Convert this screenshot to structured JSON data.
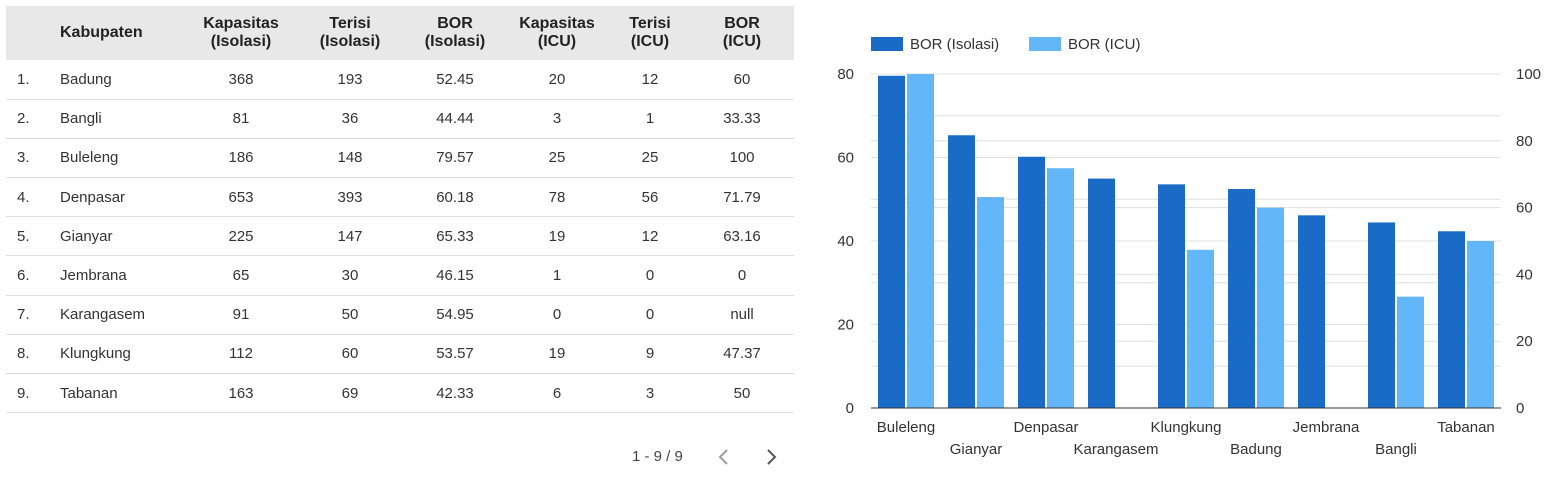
{
  "table": {
    "headers": {
      "no": "",
      "kabupaten": "Kabupaten",
      "kap_iso": [
        "Kapasitas",
        "(Isolasi)"
      ],
      "ter_iso": [
        "Terisi",
        "(Isolasi)"
      ],
      "bor_iso": [
        "BOR",
        "(Isolasi)"
      ],
      "kap_icu": [
        "Kapasitas",
        "(ICU)"
      ],
      "ter_icu": [
        "Terisi",
        "(ICU)"
      ],
      "bor_icu": [
        "BOR",
        "(ICU)"
      ]
    },
    "rows": [
      {
        "no": "1.",
        "kabupaten": "Badung",
        "kap_iso": "368",
        "ter_iso": "193",
        "bor_iso": "52.45",
        "kap_icu": "20",
        "ter_icu": "12",
        "bor_icu": "60"
      },
      {
        "no": "2.",
        "kabupaten": "Bangli",
        "kap_iso": "81",
        "ter_iso": "36",
        "bor_iso": "44.44",
        "kap_icu": "3",
        "ter_icu": "1",
        "bor_icu": "33.33"
      },
      {
        "no": "3.",
        "kabupaten": "Buleleng",
        "kap_iso": "186",
        "ter_iso": "148",
        "bor_iso": "79.57",
        "kap_icu": "25",
        "ter_icu": "25",
        "bor_icu": "100"
      },
      {
        "no": "4.",
        "kabupaten": "Denpasar",
        "kap_iso": "653",
        "ter_iso": "393",
        "bor_iso": "60.18",
        "kap_icu": "78",
        "ter_icu": "56",
        "bor_icu": "71.79"
      },
      {
        "no": "5.",
        "kabupaten": "Gianyar",
        "kap_iso": "225",
        "ter_iso": "147",
        "bor_iso": "65.33",
        "kap_icu": "19",
        "ter_icu": "12",
        "bor_icu": "63.16"
      },
      {
        "no": "6.",
        "kabupaten": "Jembrana",
        "kap_iso": "65",
        "ter_iso": "30",
        "bor_iso": "46.15",
        "kap_icu": "1",
        "ter_icu": "0",
        "bor_icu": "0"
      },
      {
        "no": "7.",
        "kabupaten": "Karangasem",
        "kap_iso": "91",
        "ter_iso": "50",
        "bor_iso": "54.95",
        "kap_icu": "0",
        "ter_icu": "0",
        "bor_icu": "null"
      },
      {
        "no": "8.",
        "kabupaten": "Klungkung",
        "kap_iso": "112",
        "ter_iso": "60",
        "bor_iso": "53.57",
        "kap_icu": "19",
        "ter_icu": "9",
        "bor_icu": "47.37"
      },
      {
        "no": "9.",
        "kabupaten": "Tabanan",
        "kap_iso": "163",
        "ter_iso": "69",
        "bor_iso": "42.33",
        "kap_icu": "6",
        "ter_icu": "3",
        "bor_icu": "50"
      }
    ]
  },
  "pagination": {
    "label": "1 - 9 / 9",
    "prev_icon": "chevron-left-icon",
    "next_icon": "chevron-right-icon"
  },
  "chart_data": {
    "type": "bar",
    "title": "",
    "xlabel": "",
    "ylabel": "",
    "categories": [
      "Buleleng",
      "Gianyar",
      "Denpasar",
      "Karangasem",
      "Klungkung",
      "Badung",
      "Jembrana",
      "Bangli",
      "Tabanan"
    ],
    "series": [
      {
        "name": "BOR (Isolasi)",
        "color": "#1a6bc5",
        "axis": "left",
        "values": [
          79.57,
          65.33,
          60.18,
          54.95,
          53.57,
          52.45,
          46.15,
          44.44,
          42.33
        ]
      },
      {
        "name": "BOR (ICU)",
        "color": "#63b6f7",
        "axis": "right",
        "values": [
          100,
          63.16,
          71.79,
          null,
          47.37,
          60,
          0,
          33.33,
          50
        ]
      }
    ],
    "left_axis": {
      "ylim": [
        0,
        80
      ],
      "ticks": [
        0,
        20,
        40,
        60,
        80
      ]
    },
    "right_axis": {
      "ylim": [
        0,
        100
      ],
      "ticks": [
        0,
        20,
        40,
        60,
        80,
        100
      ]
    },
    "grid": true,
    "legend": "top-left",
    "colors": {
      "grid": "#e0e0e0",
      "axis": "#333333",
      "label": "#333333"
    }
  }
}
